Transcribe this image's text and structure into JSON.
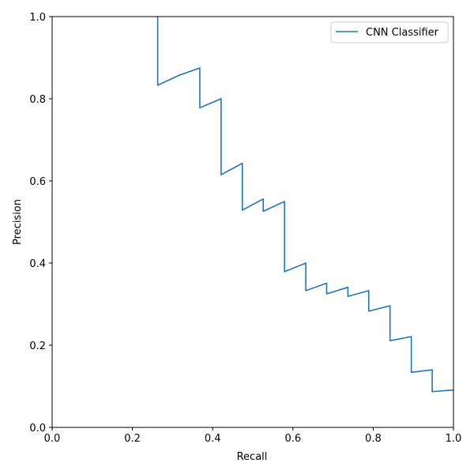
{
  "chart_data": {
    "type": "line",
    "title": "",
    "xlabel": "Recall",
    "ylabel": "Precision",
    "xlim": [
      0,
      1
    ],
    "ylim": [
      0,
      1
    ],
    "xticks": [
      "0.0",
      "0.2",
      "0.4",
      "0.6",
      "0.8",
      "1.0"
    ],
    "yticks": [
      "0.0",
      "0.2",
      "0.4",
      "0.6",
      "0.8",
      "1.0"
    ],
    "grid": false,
    "legend_position": "top-right",
    "series": [
      {
        "name": "CNN Classifier",
        "color": "#1f77b4",
        "x": [
          0.263,
          0.263,
          0.316,
          0.368,
          0.368,
          0.421,
          0.421,
          0.474,
          0.474,
          0.526,
          0.526,
          0.579,
          0.579,
          0.632,
          0.632,
          0.684,
          0.684,
          0.737,
          0.737,
          0.789,
          0.789,
          0.842,
          0.842,
          0.895,
          0.895,
          0.947,
          0.947,
          1.0
        ],
        "y": [
          1.0,
          0.833,
          0.857,
          0.875,
          0.778,
          0.8,
          0.615,
          0.643,
          0.529,
          0.556,
          0.526,
          0.55,
          0.379,
          0.4,
          0.333,
          0.351,
          0.325,
          0.341,
          0.319,
          0.333,
          0.283,
          0.296,
          0.211,
          0.221,
          0.134,
          0.14,
          0.087,
          0.091
        ]
      }
    ]
  }
}
